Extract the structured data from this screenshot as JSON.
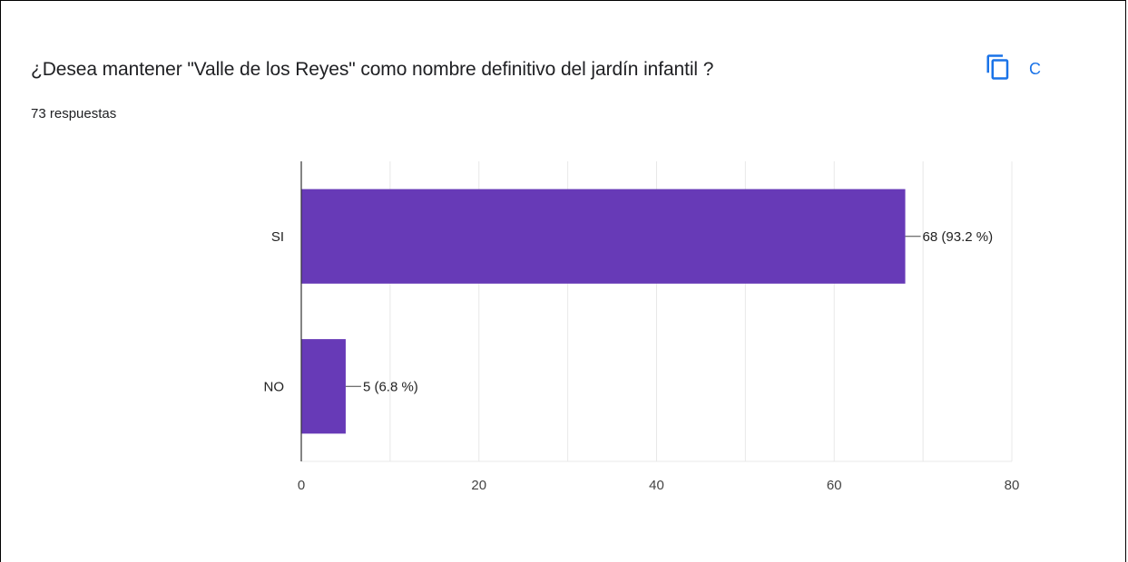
{
  "question": {
    "title": "¿Desea mantener \"Valle de los Reyes\" como nombre definitivo del jardín infantil ?",
    "responses": "73 respuestas",
    "copy_label": "C",
    "copy_icon": "copy-icon"
  },
  "colors": {
    "bar": "#673ab7",
    "accent": "#1a73e8",
    "text": "#202124",
    "grid": "#e8e8e8"
  },
  "chart_data": {
    "type": "bar",
    "orientation": "horizontal",
    "title": "",
    "xlabel": "",
    "ylabel": "",
    "categories": [
      "SI",
      "NO"
    ],
    "values": [
      68,
      5
    ],
    "labels": [
      "68 (93.2 %)",
      "5 (6.8 %)"
    ],
    "xlim": [
      0,
      80
    ],
    "xticks": [
      0,
      20,
      40,
      60,
      80
    ],
    "grid": true,
    "legend": "none"
  }
}
